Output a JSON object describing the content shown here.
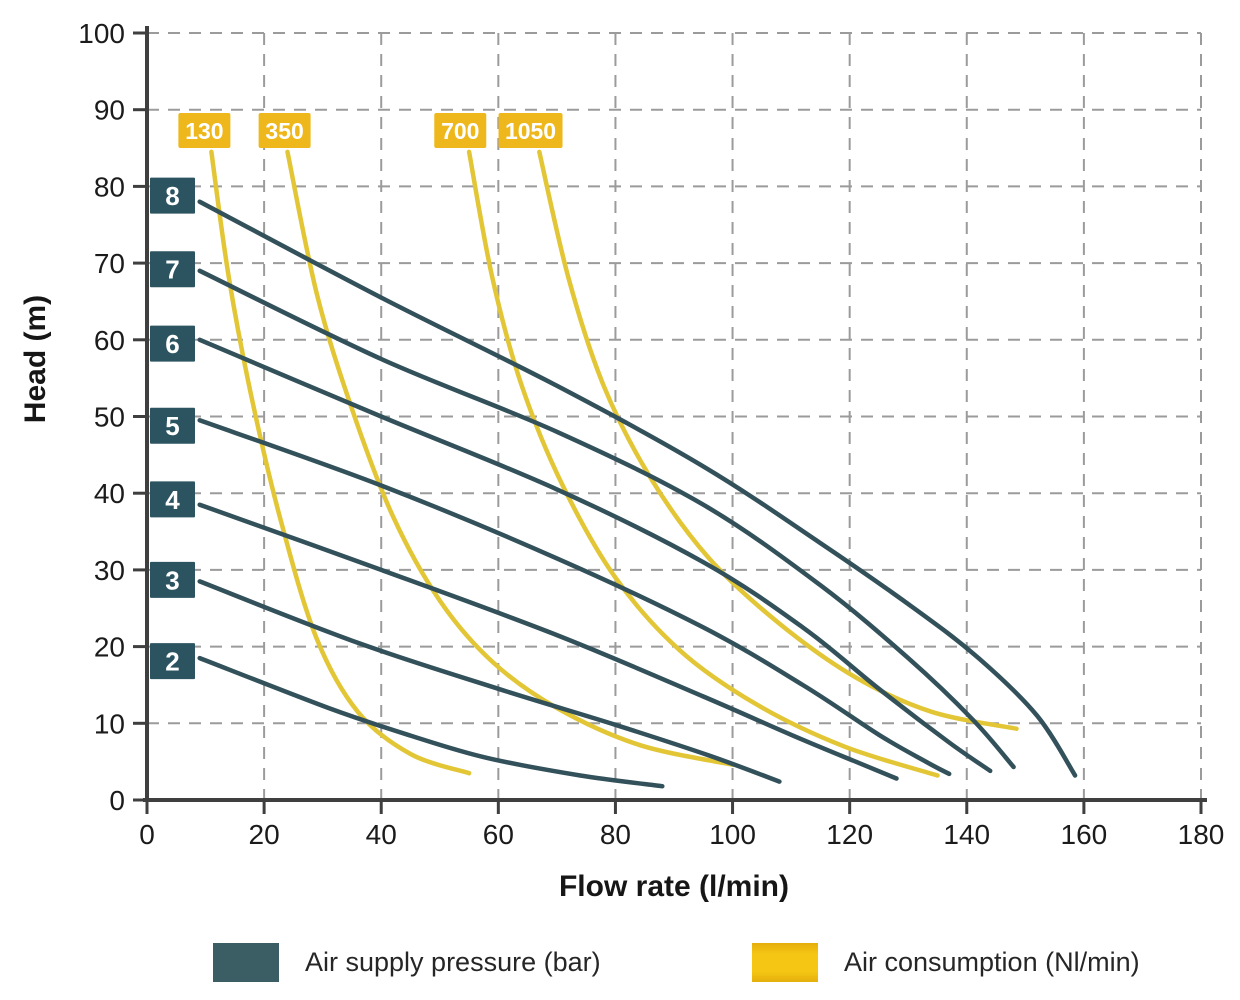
{
  "chart_data": {
    "type": "line",
    "title": "",
    "xlabel": "Flow rate (l/min)",
    "ylabel": "Head (m)",
    "xlim": [
      0,
      180
    ],
    "ylim": [
      0,
      100
    ],
    "x_ticks": [
      0,
      20,
      40,
      60,
      80,
      100,
      120,
      140,
      160,
      180
    ],
    "y_ticks": [
      0,
      10,
      20,
      30,
      40,
      50,
      60,
      70,
      80,
      90,
      100
    ],
    "grid": "dashed",
    "legend_position": "bottom",
    "series_groups": [
      {
        "id": "pressure",
        "legend_label": "Air supply pressure (bar)",
        "unit": "bar",
        "series": [
          {
            "label": "8",
            "label_head": 78.8,
            "points": [
              [
                9,
                78
              ],
              [
                40,
                65.5
              ],
              [
                70,
                54
              ],
              [
                95,
                43.5
              ],
              [
                115,
                33.5
              ],
              [
                131,
                25
              ],
              [
                142,
                18.5
              ],
              [
                152,
                11
              ],
              [
                158.5,
                3.2
              ]
            ]
          },
          {
            "label": "7",
            "label_head": 69.2,
            "points": [
              [
                9,
                69
              ],
              [
                40,
                57.5
              ],
              [
                70,
                48
              ],
              [
                95,
                38.5
              ],
              [
                115,
                28
              ],
              [
                130,
                18.5
              ],
              [
                141,
                10.5
              ],
              [
                148,
                4.3
              ]
            ]
          },
          {
            "label": "6",
            "label_head": 59.5,
            "points": [
              [
                9,
                60
              ],
              [
                40,
                50
              ],
              [
                70,
                40.5
              ],
              [
                95,
                31
              ],
              [
                112,
                22.5
              ],
              [
                125,
                14.5
              ],
              [
                137,
                7.5
              ],
              [
                144,
                3.8
              ]
            ]
          },
          {
            "label": "5",
            "label_head": 48.8,
            "points": [
              [
                9,
                49.5
              ],
              [
                40,
                41
              ],
              [
                70,
                31.5
              ],
              [
                95,
                22.5
              ],
              [
                112,
                15
              ],
              [
                125,
                8.5
              ],
              [
                133,
                5
              ],
              [
                137,
                3.4
              ]
            ]
          },
          {
            "label": "4",
            "label_head": 39.2,
            "points": [
              [
                9,
                38.5
              ],
              [
                40,
                30
              ],
              [
                70,
                21.5
              ],
              [
                95,
                13.5
              ],
              [
                110,
                8.5
              ],
              [
                121,
                5
              ],
              [
                128,
                2.8
              ]
            ]
          },
          {
            "label": "3",
            "label_head": 28.7,
            "points": [
              [
                9,
                28.5
              ],
              [
                36,
                20.5
              ],
              [
                60,
                14.5
              ],
              [
                80,
                9.8
              ],
              [
                96,
                5.8
              ],
              [
                108,
                2.4
              ]
            ]
          },
          {
            "label": "2",
            "label_head": 18.1,
            "points": [
              [
                9,
                18.5
              ],
              [
                31,
                12
              ],
              [
                45,
                8.4
              ],
              [
                58,
                5.5
              ],
              [
                74,
                3.2
              ],
              [
                88,
                1.8
              ]
            ]
          }
        ]
      },
      {
        "id": "consumption",
        "legend_label": "Air consumption (Nl/min)",
        "unit": "Nl/min",
        "series": [
          {
            "label": "130",
            "label_flow": 9.8,
            "points": [
              [
                11,
                84.5
              ],
              [
                14,
                68
              ],
              [
                18,
                52
              ],
              [
                23,
                36
              ],
              [
                29,
                21
              ],
              [
                36,
                11.5
              ],
              [
                45,
                6
              ],
              [
                55,
                3.5
              ]
            ]
          },
          {
            "label": "350",
            "label_flow": 23.5,
            "points": [
              [
                24,
                84.5
              ],
              [
                29,
                66
              ],
              [
                35,
                51
              ],
              [
                42,
                37
              ],
              [
                50,
                26
              ],
              [
                59,
                18
              ],
              [
                70,
                12
              ],
              [
                84,
                7.2
              ],
              [
                100,
                4.6
              ]
            ]
          },
          {
            "label": "700",
            "label_flow": 53.5,
            "points": [
              [
                55,
                84.5
              ],
              [
                59,
                68
              ],
              [
                64,
                54
              ],
              [
                71,
                41
              ],
              [
                80,
                29
              ],
              [
                91,
                19.5
              ],
              [
                104,
                12.5
              ],
              [
                119,
                7
              ],
              [
                135,
                3.2
              ]
            ]
          },
          {
            "label": "1050",
            "label_flow": 65.5,
            "points": [
              [
                67,
                84.5
              ],
              [
                72,
                68
              ],
              [
                78,
                54
              ],
              [
                86,
                42
              ],
              [
                96,
                31.5
              ],
              [
                108,
                23
              ],
              [
                121,
                16
              ],
              [
                134,
                11.5
              ],
              [
                148.5,
                9.3
              ]
            ]
          }
        ]
      }
    ]
  },
  "colors": {
    "pressure_curve": "#33515a",
    "pressure_box": "#2b5360",
    "pressure_box_text": "#ffffff",
    "consumption_curve": "#e2c636",
    "consumption_box": "#eeb81c",
    "consumption_box_text": "#ffffff",
    "grid": "#9b9b9b",
    "axis": "#3f3f3f",
    "tick_text": "#1b1b1b",
    "legend_swatch_pressure": "#3b5d64",
    "legend_swatch_consumption": "#f5c614"
  },
  "legend": {
    "items": [
      {
        "label": "Air supply pressure (bar)"
      },
      {
        "label": "Air consumption (Nl/min)"
      }
    ]
  }
}
